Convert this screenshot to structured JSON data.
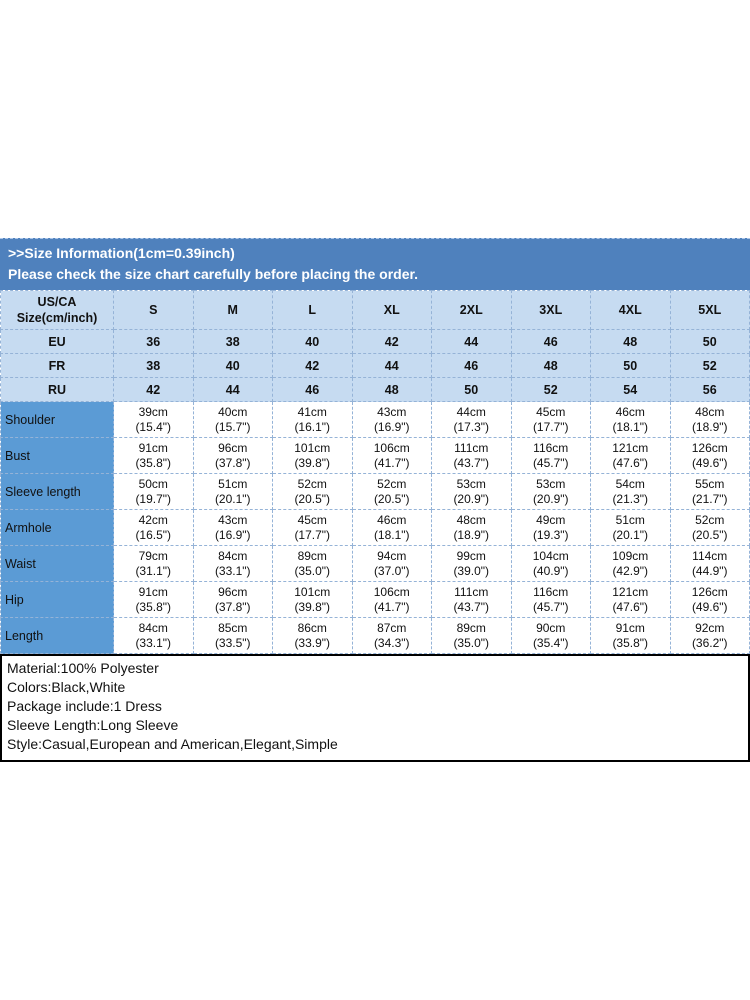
{
  "banner": {
    "title": ">>Size Information(1cm=0.39inch)",
    "subtitle": "Please check the size chart carefully before placing the order."
  },
  "table": {
    "corner_header": {
      "line1": "US/CA",
      "line2": "Size(cm/inch)"
    },
    "size_headers": [
      "S",
      "M",
      "L",
      "XL",
      "2XL",
      "3XL",
      "4XL",
      "5XL"
    ],
    "region_rows": [
      {
        "label": "EU",
        "values": [
          "36",
          "38",
          "40",
          "42",
          "44",
          "46",
          "48",
          "50"
        ]
      },
      {
        "label": "FR",
        "values": [
          "38",
          "40",
          "42",
          "44",
          "46",
          "48",
          "50",
          "52"
        ]
      },
      {
        "label": "RU",
        "values": [
          "42",
          "44",
          "46",
          "48",
          "50",
          "52",
          "54",
          "56"
        ]
      }
    ],
    "measurement_rows": [
      {
        "label": "Shoulder",
        "cm": [
          "39cm",
          "40cm",
          "41cm",
          "43cm",
          "44cm",
          "45cm",
          "46cm",
          "48cm"
        ],
        "inch": [
          "(15.4\")",
          "(15.7\")",
          "(16.1\")",
          "(16.9\")",
          "(17.3\")",
          "(17.7\")",
          "(18.1\")",
          "(18.9\")"
        ]
      },
      {
        "label": "Bust",
        "cm": [
          "91cm",
          "96cm",
          "101cm",
          "106cm",
          "111cm",
          "116cm",
          "121cm",
          "126cm"
        ],
        "inch": [
          "(35.8\")",
          "(37.8\")",
          "(39.8\")",
          "(41.7\")",
          "(43.7\")",
          "(45.7\")",
          "(47.6\")",
          "(49.6\")"
        ]
      },
      {
        "label": "Sleeve length",
        "cm": [
          "50cm",
          "51cm",
          "52cm",
          "52cm",
          "53cm",
          "53cm",
          "54cm",
          "55cm"
        ],
        "inch": [
          "(19.7\")",
          "(20.1\")",
          "(20.5\")",
          "(20.5\")",
          "(20.9\")",
          "(20.9\")",
          "(21.3\")",
          "(21.7\")"
        ]
      },
      {
        "label": "Armhole",
        "cm": [
          "42cm",
          "43cm",
          "45cm",
          "46cm",
          "48cm",
          "49cm",
          "51cm",
          "52cm"
        ],
        "inch": [
          "(16.5\")",
          "(16.9\")",
          "(17.7\")",
          "(18.1\")",
          "(18.9\")",
          "(19.3\")",
          "(20.1\")",
          "(20.5\")"
        ]
      },
      {
        "label": "Waist",
        "cm": [
          "79cm",
          "84cm",
          "89cm",
          "94cm",
          "99cm",
          "104cm",
          "109cm",
          "114cm"
        ],
        "inch": [
          "(31.1\")",
          "(33.1\")",
          "(35.0\")",
          "(37.0\")",
          "(39.0\")",
          "(40.9\")",
          "(42.9\")",
          "(44.9\")"
        ]
      },
      {
        "label": "Hip",
        "cm": [
          "91cm",
          "96cm",
          "101cm",
          "106cm",
          "111cm",
          "116cm",
          "121cm",
          "126cm"
        ],
        "inch": [
          "(35.8\")",
          "(37.8\")",
          "(39.8\")",
          "(41.7\")",
          "(43.7\")",
          "(45.7\")",
          "(47.6\")",
          "(49.6\")"
        ]
      },
      {
        "label": "Length",
        "cm": [
          "84cm",
          "85cm",
          "86cm",
          "87cm",
          "89cm",
          "90cm",
          "91cm",
          "92cm"
        ],
        "inch": [
          "(33.1\")",
          "(33.5\")",
          "(33.9\")",
          "(34.3\")",
          "(35.0\")",
          "(35.4\")",
          "(35.8\")",
          "(36.2\")"
        ]
      }
    ]
  },
  "details": {
    "lines": [
      "Material:100% Polyester",
      "Colors:Black,White",
      "Package include:1 Dress",
      "Sleeve Length:Long Sleeve",
      "Style:Casual,European and American,Elegant,Simple"
    ]
  },
  "colors": {
    "banner_bg": "#4F81BD",
    "header_bg": "#C6DBF1",
    "label_bg": "#5B9BD5",
    "border": "#95B3D7"
  }
}
